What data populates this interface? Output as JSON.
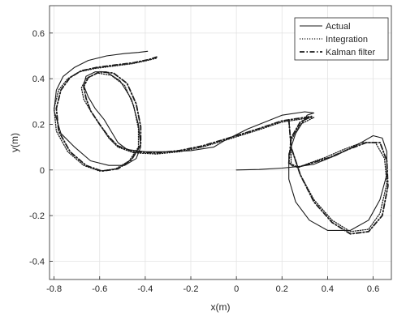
{
  "chart_data": {
    "type": "line",
    "title": "",
    "xlabel": "x(m)",
    "ylabel": "y(m)",
    "xlim": [
      -0.82,
      0.68
    ],
    "ylim": [
      -0.48,
      0.72
    ],
    "xticks": [
      -0.8,
      -0.6,
      -0.4,
      -0.2,
      0,
      0.2,
      0.4,
      0.6
    ],
    "yticks": [
      -0.4,
      -0.2,
      0,
      0.2,
      0.4,
      0.6
    ],
    "xtick_labels": [
      "-0.8",
      "-0.6",
      "-0.4",
      "-0.2",
      "0",
      "0.2",
      "0.4",
      "0.6"
    ],
    "ytick_labels": [
      "-0.4",
      "-0.2",
      "0",
      "0.2",
      "0.4",
      "0.6"
    ],
    "grid": true,
    "legend_position": "top-right",
    "series": [
      {
        "name": "Actual",
        "style": "solid",
        "x": [
          0.0,
          0.1,
          0.2,
          0.28,
          0.34,
          0.44,
          0.53,
          0.6,
          0.64,
          0.66,
          0.66,
          0.63,
          0.58,
          0.5,
          0.4,
          0.32,
          0.26,
          0.23,
          0.23,
          0.26,
          0.31,
          0.34,
          0.3,
          0.2,
          0.05,
          -0.05,
          -0.1,
          -0.2,
          -0.3,
          -0.4,
          -0.48,
          -0.52,
          -0.55,
          -0.58,
          -0.62,
          -0.65,
          -0.67,
          -0.66,
          -0.62,
          -0.57,
          -0.51,
          -0.46,
          -0.43,
          -0.42,
          -0.44,
          -0.49,
          -0.56,
          -0.64,
          -0.71,
          -0.77,
          -0.8,
          -0.79,
          -0.76,
          -0.71,
          -0.65,
          -0.57,
          -0.49,
          -0.43,
          -0.39
        ],
        "y": [
          0.0,
          0.002,
          0.008,
          0.016,
          0.025,
          0.065,
          0.11,
          0.15,
          0.14,
          0.08,
          -0.02,
          -0.13,
          -0.22,
          -0.265,
          -0.265,
          -0.22,
          -0.14,
          -0.04,
          0.07,
          0.16,
          0.24,
          0.25,
          0.255,
          0.24,
          0.18,
          0.13,
          0.1,
          0.085,
          0.08,
          0.08,
          0.09,
          0.12,
          0.17,
          0.22,
          0.27,
          0.32,
          0.37,
          0.41,
          0.43,
          0.43,
          0.39,
          0.31,
          0.2,
          0.1,
          0.05,
          0.02,
          0.02,
          0.04,
          0.1,
          0.16,
          0.26,
          0.35,
          0.41,
          0.45,
          0.48,
          0.5,
          0.51,
          0.515,
          0.52
        ]
      },
      {
        "name": "Integration",
        "style": "dotted",
        "x": [
          0.23,
          0.24,
          0.28,
          0.34,
          0.42,
          0.5,
          0.58,
          0.63,
          0.66,
          0.65,
          0.61,
          0.55,
          0.47,
          0.39,
          0.32,
          0.27,
          0.24,
          0.24,
          0.28,
          0.34,
          0.3,
          0.2,
          0.08,
          -0.05,
          -0.15,
          -0.25,
          -0.35,
          -0.45,
          -0.52,
          -0.56,
          -0.6,
          -0.64,
          -0.67,
          -0.68,
          -0.66,
          -0.61,
          -0.55,
          -0.49,
          -0.45,
          -0.43,
          -0.43,
          -0.47,
          -0.53,
          -0.6,
          -0.67,
          -0.74,
          -0.79,
          -0.8,
          -0.78,
          -0.74,
          -0.69,
          -0.62,
          -0.54,
          -0.46,
          -0.39,
          -0.35
        ],
        "y": [
          0.22,
          0.1,
          -0.02,
          -0.13,
          -0.22,
          -0.27,
          -0.26,
          -0.19,
          -0.06,
          0.05,
          0.12,
          0.12,
          0.09,
          0.055,
          0.03,
          0.01,
          0.02,
          0.13,
          0.2,
          0.23,
          0.225,
          0.21,
          0.17,
          0.13,
          0.1,
          0.08,
          0.07,
          0.075,
          0.1,
          0.14,
          0.2,
          0.26,
          0.31,
          0.36,
          0.4,
          0.425,
          0.415,
          0.37,
          0.28,
          0.18,
          0.1,
          0.04,
          0.005,
          -0.005,
          0.02,
          0.08,
          0.17,
          0.27,
          0.35,
          0.4,
          0.43,
          0.445,
          0.455,
          0.465,
          0.48,
          0.49
        ]
      },
      {
        "name": "Kalman filter",
        "style": "dashdot",
        "x": [
          0.23,
          0.24,
          0.28,
          0.34,
          0.42,
          0.5,
          0.58,
          0.64,
          0.665,
          0.66,
          0.63,
          0.57,
          0.49,
          0.41,
          0.33,
          0.27,
          0.23,
          0.24,
          0.28,
          0.33,
          0.3,
          0.2,
          0.08,
          -0.05,
          -0.15,
          -0.25,
          -0.35,
          -0.45,
          -0.52,
          -0.56,
          -0.6,
          -0.64,
          -0.66,
          -0.67,
          -0.65,
          -0.6,
          -0.54,
          -0.48,
          -0.44,
          -0.42,
          -0.42,
          -0.46,
          -0.52,
          -0.59,
          -0.66,
          -0.73,
          -0.78,
          -0.79,
          -0.77,
          -0.73,
          -0.68,
          -0.61,
          -0.53,
          -0.45,
          -0.38,
          -0.35
        ],
        "y": [
          0.22,
          0.1,
          -0.02,
          -0.14,
          -0.23,
          -0.28,
          -0.27,
          -0.2,
          -0.07,
          0.04,
          0.12,
          0.12,
          0.09,
          0.055,
          0.03,
          0.012,
          0.03,
          0.14,
          0.21,
          0.235,
          0.23,
          0.215,
          0.175,
          0.135,
          0.105,
          0.085,
          0.075,
          0.08,
          0.105,
          0.145,
          0.2,
          0.26,
          0.315,
          0.365,
          0.405,
          0.43,
          0.425,
          0.38,
          0.29,
          0.19,
          0.11,
          0.045,
          0.005,
          -0.005,
          0.02,
          0.08,
          0.17,
          0.27,
          0.35,
          0.405,
          0.435,
          0.45,
          0.46,
          0.47,
          0.485,
          0.495
        ]
      }
    ]
  }
}
